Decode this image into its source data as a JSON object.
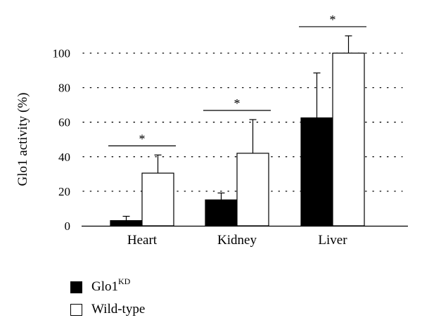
{
  "chart_data": {
    "type": "bar",
    "categories": [
      "Heart",
      "Kidney",
      "Liver"
    ],
    "series": [
      {
        "name": "Glo1",
        "name_sup": "KD",
        "color": "#000000",
        "values": [
          3,
          15,
          62.5
        ],
        "errors": [
          2.5,
          4,
          26
        ]
      },
      {
        "name": "Wild-type",
        "color": "#ffffff",
        "values": [
          30.5,
          42,
          100
        ],
        "errors": [
          10.5,
          19.5,
          10
        ]
      }
    ],
    "significance": [
      "*",
      "*",
      "*"
    ],
    "ylabel": "Glo1 activity (%)",
    "xlabel": "",
    "ylim": [
      0,
      110
    ],
    "yticks": [
      0,
      20,
      40,
      60,
      80,
      100
    ],
    "ytick_labels": [
      "0",
      "20",
      "40",
      "60",
      "80",
      "100"
    ],
    "grid": "dotted horizontal",
    "legend_position": "bottom-left"
  }
}
